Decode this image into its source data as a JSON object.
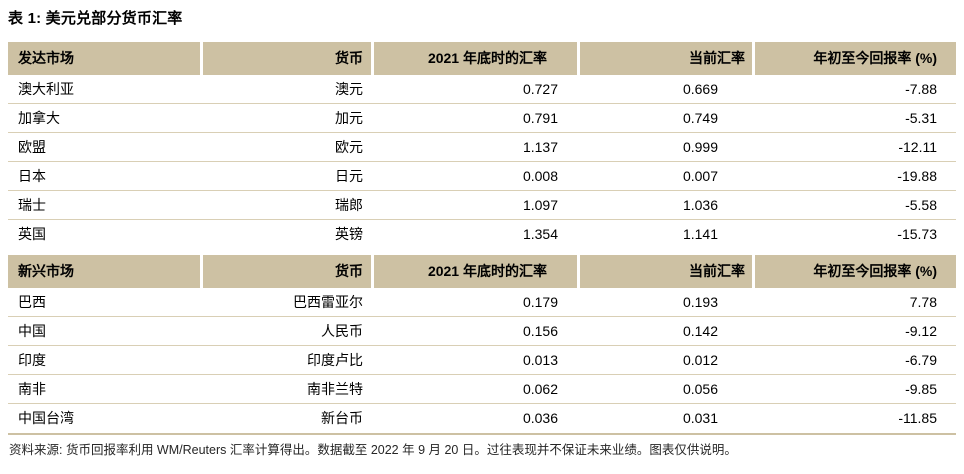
{
  "title": "表 1: 美元兑部分货币汇率",
  "sections": [
    {
      "name": "developed-markets",
      "header": {
        "market": "发达市场",
        "currency": "货币",
        "rate_2021": "2021 年底时的汇率",
        "rate_current": "当前汇率",
        "ytd_return": "年初至今回报率 (%)"
      },
      "rows": [
        {
          "market": "澳大利亚",
          "currency": "澳元",
          "rate_2021": "0.727",
          "rate_current": "0.669",
          "ytd_return": "-7.88"
        },
        {
          "market": "加拿大",
          "currency": "加元",
          "rate_2021": "0.791",
          "rate_current": "0.749",
          "ytd_return": "-5.31"
        },
        {
          "market": "欧盟",
          "currency": "欧元",
          "rate_2021": "1.137",
          "rate_current": "0.999",
          "ytd_return": "-12.11"
        },
        {
          "market": "日本",
          "currency": "日元",
          "rate_2021": "0.008",
          "rate_current": "0.007",
          "ytd_return": "-19.88"
        },
        {
          "market": "瑞士",
          "currency": "瑞郎",
          "rate_2021": "1.097",
          "rate_current": "1.036",
          "ytd_return": "-5.58"
        },
        {
          "market": "英国",
          "currency": "英镑",
          "rate_2021": "1.354",
          "rate_current": "1.141",
          "ytd_return": "-15.73"
        }
      ]
    },
    {
      "name": "emerging-markets",
      "header": {
        "market": "新兴市场",
        "currency": "货币",
        "rate_2021": "2021 年底时的汇率",
        "rate_current": "当前汇率",
        "ytd_return": "年初至今回报率 (%)"
      },
      "rows": [
        {
          "market": "巴西",
          "currency": "巴西雷亚尔",
          "rate_2021": "0.179",
          "rate_current": "0.193",
          "ytd_return": "7.78"
        },
        {
          "market": "中国",
          "currency": "人民币",
          "rate_2021": "0.156",
          "rate_current": "0.142",
          "ytd_return": "-9.12"
        },
        {
          "market": "印度",
          "currency": "印度卢比",
          "rate_2021": "0.013",
          "rate_current": "0.012",
          "ytd_return": "-6.79"
        },
        {
          "market": "南非",
          "currency": "南非兰特",
          "rate_2021": "0.062",
          "rate_current": "0.056",
          "ytd_return": "-9.85"
        },
        {
          "market": "中国台湾",
          "currency": "新台币",
          "rate_2021": "0.036",
          "rate_current": "0.031",
          "ytd_return": "-11.85"
        }
      ]
    }
  ],
  "footer": "资料来源: 货币回报率利用 WM/Reuters 汇率计算得出。数据截至 2022 年 9 月 20 日。过往表现并不保证未来业绩。图表仅供说明。",
  "colors": {
    "header_bg": "#cdc1a3",
    "divider": "#d9cfb5",
    "text": "#000000",
    "footer_text": "#262626"
  }
}
